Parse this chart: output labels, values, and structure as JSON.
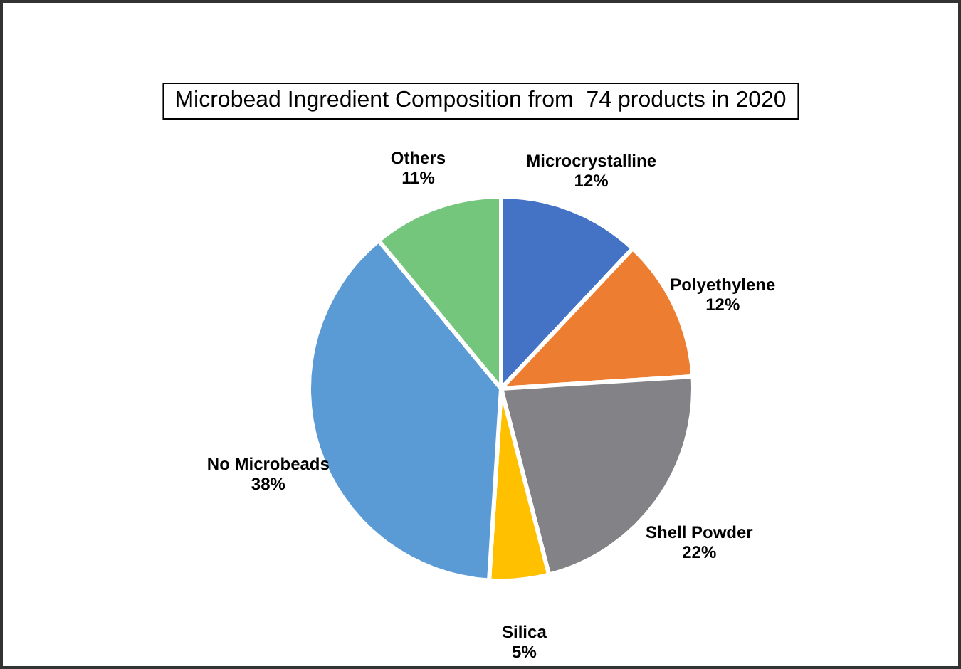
{
  "chart_data": {
    "type": "pie",
    "title": "Microbead Ingredient Composition from  74 products in 2020",
    "categories": [
      "Microcrystalline",
      "Polyethylene",
      "Shell Powder",
      "Silica",
      "No Microbeads",
      "Others"
    ],
    "values": [
      12,
      12,
      22,
      5,
      38,
      11
    ],
    "value_labels": [
      "12%",
      "12%",
      "22%",
      "5%",
      "38%",
      "11%"
    ],
    "colors": [
      "#4472c4",
      "#ed7d31",
      "#838387",
      "#ffc000",
      "#5b9bd5",
      "#73c67c"
    ]
  }
}
